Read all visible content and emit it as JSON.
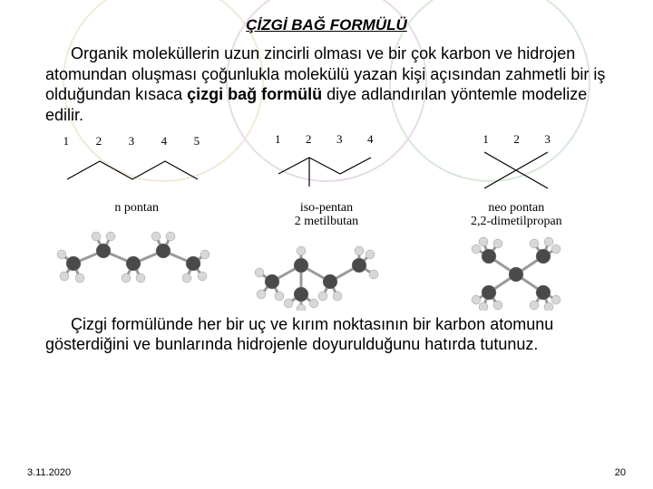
{
  "title": "ÇİZGİ BAĞ FORMÜLÜ",
  "paragraph1_parts": {
    "pre": "Organik moleküllerin uzun zincirli olması ve bir çok karbon ve hidrojen atomundan oluşması çoğunlukla molekülü yazan kişi açısından zahmetli bir iş olduğundan kısaca ",
    "bold": "çizgi bağ formülü",
    "post": " diye adlandırılan yöntemle modelize edilir."
  },
  "columns": [
    {
      "numbers": [
        "1",
        "2",
        "3",
        "4",
        "5"
      ],
      "name_lines": [
        "n pontan"
      ],
      "type": "zigzag5"
    },
    {
      "numbers": [
        "1",
        "2",
        "3",
        "4"
      ],
      "name_lines": [
        "iso-pentan",
        "2 metilbutan"
      ],
      "type": "iso"
    },
    {
      "numbers": [
        "1",
        "2",
        "3"
      ],
      "name_lines": [
        "neo pontan",
        "2,2-dimetilpropan"
      ],
      "type": "neo"
    }
  ],
  "colors": {
    "carbon": "#4a4a4a",
    "hydrogen": "#d8d8d8",
    "bond": "#9a9a9a",
    "text": "#000000",
    "circle1": "#f2e9d8",
    "circle2": "#e8dbe8",
    "circle3": "#d8e8d8"
  },
  "paragraph2": "Çizgi formülünde her bir uç ve kırım noktasının bir karbon atomunu gösterdiğini ve bunlarında hidrojenle doyurulduğunu hatırda tutunuz.",
  "footer": {
    "date": "3.11.2020",
    "page": "20"
  }
}
